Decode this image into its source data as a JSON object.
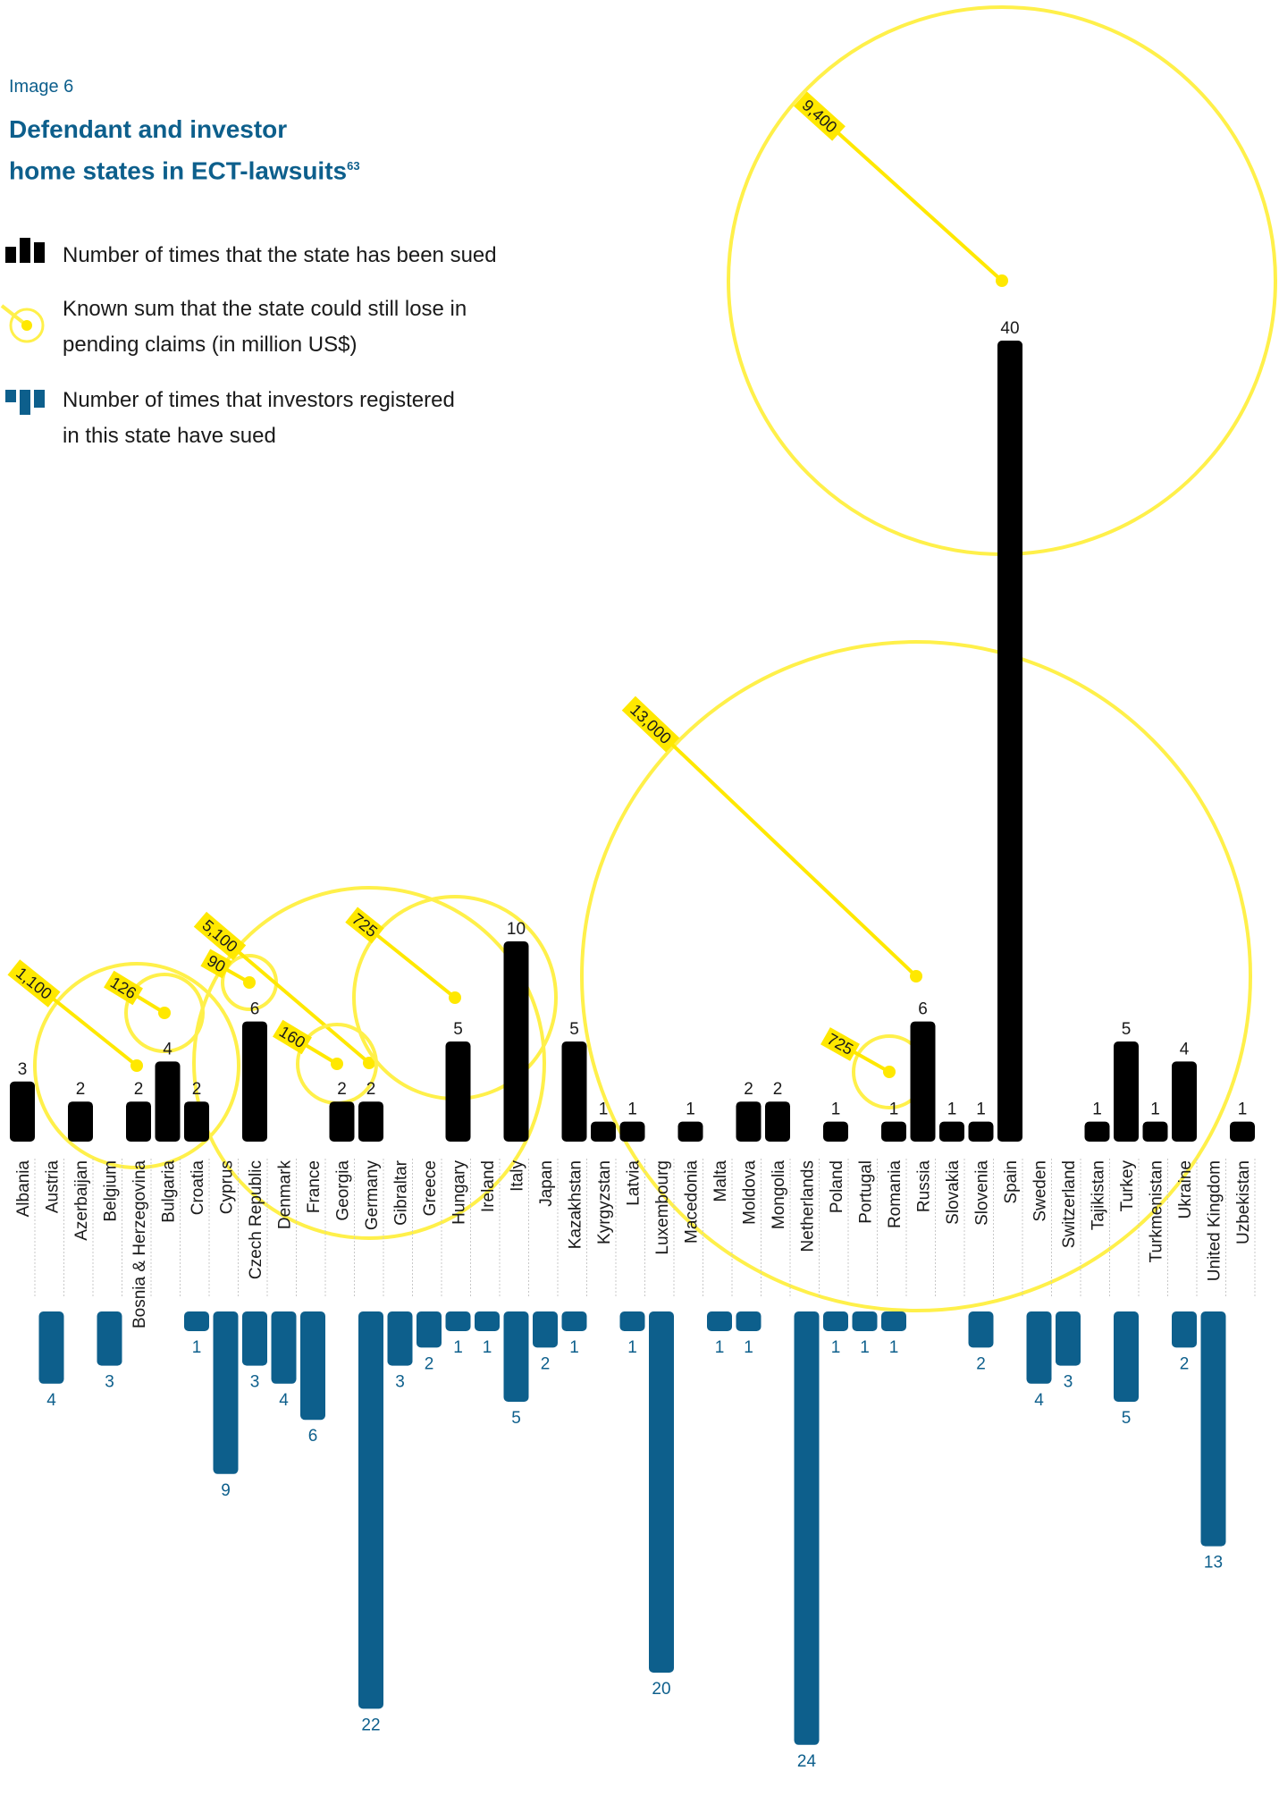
{
  "header": {
    "image_label": "Image 6",
    "title_line1": "Defendant and investor",
    "title_line2": "home states in ECT-lawsuits",
    "footnote": "63"
  },
  "legend": {
    "sued": "Number of times that the state has been sued",
    "sum_line1": "Known sum that the state could still lose in",
    "sum_line2": "pending claims (in million US$)",
    "investor_line1": "Number of times that investors registered",
    "investor_line2": "in this state have sued"
  },
  "colors": {
    "sued": "#000000",
    "investor": "#0d5f8c",
    "circle": "#fff04a",
    "circle_fill": "#ffe800"
  },
  "chart_data": {
    "type": "bar",
    "categories": [
      "Albania",
      "Austria",
      "Azerbaijan",
      "Belgium",
      "Bosnia & Herzegovina",
      "Bulgaria",
      "Croatia",
      "Cyprus",
      "Czech Republic",
      "Denmark",
      "France",
      "Georgia",
      "Germany",
      "Gibraltar",
      "Greece",
      "Hungary",
      "Ireland",
      "Italy",
      "Japan",
      "Kazakhstan",
      "Kyrgyzstan",
      "Latvia",
      "Luxembourg",
      "Macedonia",
      "Malta",
      "Moldova",
      "Mongolia",
      "Netherlands",
      "Poland",
      "Portugal",
      "Romania",
      "Russia",
      "Slovakia",
      "Slovenia",
      "Spain",
      "Sweden",
      "Switzerland",
      "Tajikistan",
      "Turkey",
      "Turkmenistan",
      "Ukraine",
      "United Kingdom",
      "Uzbekistan"
    ],
    "series": [
      {
        "name": "Number of times that the state has been sued",
        "values": [
          3,
          0,
          2,
          0,
          2,
          4,
          2,
          0,
          6,
          0,
          0,
          2,
          2,
          0,
          0,
          5,
          0,
          10,
          0,
          5,
          1,
          1,
          0,
          1,
          0,
          2,
          2,
          0,
          1,
          0,
          1,
          6,
          1,
          1,
          40,
          0,
          0,
          1,
          5,
          1,
          4,
          0,
          1
        ]
      },
      {
        "name": "Number of times that investors registered in this state have sued",
        "values": [
          0,
          4,
          0,
          3,
          0,
          0,
          1,
          9,
          3,
          4,
          6,
          0,
          22,
          3,
          2,
          1,
          1,
          5,
          2,
          1,
          0,
          1,
          20,
          0,
          1,
          1,
          0,
          24,
          1,
          1,
          1,
          0,
          0,
          2,
          0,
          4,
          3,
          0,
          5,
          0,
          2,
          13,
          0
        ]
      }
    ],
    "pending_claims": [
      {
        "country": "Albania",
        "label": "1,100",
        "value": 1100
      },
      {
        "country": "Bulgaria",
        "label": "126",
        "value": 126
      },
      {
        "country": "Czech Republic",
        "label": "90",
        "value": 90
      },
      {
        "country": "Germany",
        "label": "5,100",
        "value": 5100
      },
      {
        "country": "Georgia",
        "label": "160",
        "value": 160
      },
      {
        "country": "Hungary",
        "label": "725",
        "value": 725
      },
      {
        "country": "Romania",
        "label": "725",
        "value": 725
      },
      {
        "country": "Russia",
        "label": "13,000",
        "value": 13000
      },
      {
        "country": "Spain",
        "label": "9,400",
        "value": 9400
      }
    ]
  }
}
